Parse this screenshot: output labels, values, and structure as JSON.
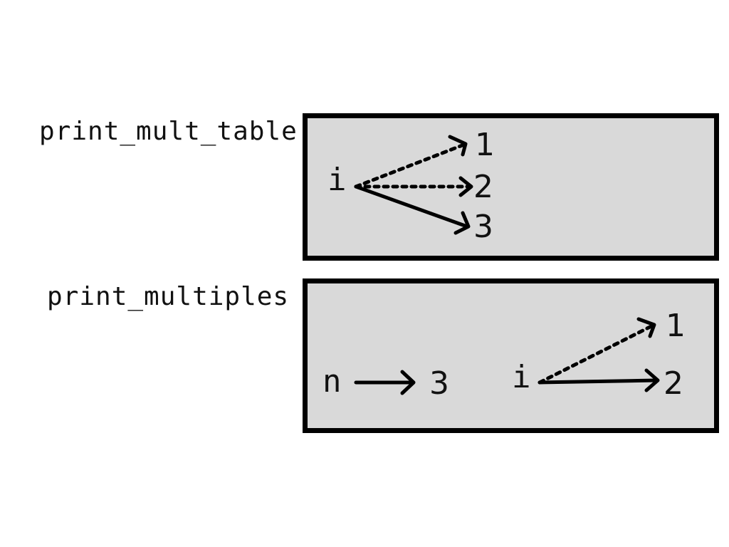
{
  "frames": [
    {
      "name": "print_mult_table",
      "variables": [
        {
          "name": "i",
          "values": [
            {
              "value": "1",
              "style": "dotted"
            },
            {
              "value": "2",
              "style": "dotted"
            },
            {
              "value": "3",
              "style": "solid"
            }
          ]
        }
      ]
    },
    {
      "name": "print_multiples",
      "variables": [
        {
          "name": "n",
          "values": [
            {
              "value": "3",
              "style": "solid"
            }
          ]
        },
        {
          "name": "i",
          "values": [
            {
              "value": "1",
              "style": "dotted"
            },
            {
              "value": "2",
              "style": "solid"
            }
          ]
        }
      ]
    }
  ],
  "colors": {
    "frame_fill": "#d9d9d9",
    "frame_border": "#000000",
    "text": "#111111"
  }
}
